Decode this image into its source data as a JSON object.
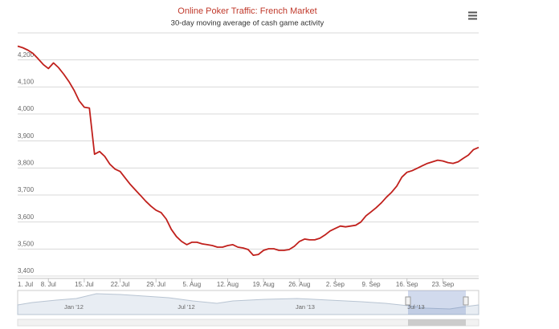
{
  "chart_data": {
    "type": "line",
    "title": "Online Poker Traffic: French Market",
    "subtitle": "30-day moving average of cash game activity",
    "x": [
      "07-02",
      "07-03",
      "07-04",
      "07-05",
      "07-06",
      "07-07",
      "07-08",
      "07-09",
      "07-10",
      "07-11",
      "07-12",
      "07-13",
      "07-14",
      "07-15",
      "07-16",
      "07-17",
      "07-18",
      "07-19",
      "07-20",
      "07-21",
      "07-22",
      "07-23",
      "07-24",
      "07-25",
      "07-26",
      "07-27",
      "07-28",
      "07-29",
      "07-30",
      "07-31",
      "08-01",
      "08-02",
      "08-03",
      "08-04",
      "08-05",
      "08-06",
      "08-07",
      "08-08",
      "08-09",
      "08-10",
      "08-11",
      "08-12",
      "08-13",
      "08-14",
      "08-15",
      "08-16",
      "08-17",
      "08-18",
      "08-19",
      "08-20",
      "08-21",
      "08-22",
      "08-23",
      "08-24",
      "08-25",
      "08-26",
      "08-27",
      "08-28",
      "08-29",
      "08-30",
      "08-31",
      "09-01",
      "09-02",
      "09-03",
      "09-04",
      "09-05",
      "09-06",
      "09-07",
      "09-08",
      "09-09",
      "09-10",
      "09-11",
      "09-12",
      "09-13",
      "09-14",
      "09-15",
      "09-16",
      "09-17",
      "09-18",
      "09-19",
      "09-20",
      "09-21",
      "09-22",
      "09-23",
      "09-24",
      "09-25",
      "09-26",
      "09-27",
      "09-28",
      "09-29",
      "09-30"
    ],
    "series": [
      {
        "color": "#c0201c",
        "values": [
          4251,
          4245,
          4236,
          4224,
          4204,
          4183,
          4168,
          4189,
          4171,
          4147,
          4120,
          4088,
          4049,
          4025,
          4022,
          3851,
          3861,
          3843,
          3814,
          3796,
          3787,
          3763,
          3739,
          3718,
          3698,
          3677,
          3659,
          3644,
          3635,
          3611,
          3573,
          3546,
          3528,
          3516,
          3525,
          3525,
          3519,
          3516,
          3513,
          3507,
          3507,
          3513,
          3516,
          3507,
          3504,
          3498,
          3477,
          3480,
          3495,
          3501,
          3501,
          3495,
          3495,
          3498,
          3510,
          3528,
          3537,
          3534,
          3534,
          3540,
          3552,
          3567,
          3576,
          3585,
          3582,
          3585,
          3588,
          3600,
          3623,
          3638,
          3653,
          3671,
          3692,
          3710,
          3733,
          3766,
          3784,
          3790,
          3799,
          3808,
          3817,
          3823,
          3829,
          3826,
          3820,
          3817,
          3823,
          3836,
          3848,
          3868,
          3876
        ]
      }
    ],
    "xlim": [
      "07-02",
      "09-30"
    ],
    "xticks": [
      {
        "value": "07-01",
        "label": "1. Jul"
      },
      {
        "value": "07-08",
        "label": "8. Jul"
      },
      {
        "value": "07-15",
        "label": "15. Jul"
      },
      {
        "value": "07-22",
        "label": "22. Jul"
      },
      {
        "value": "07-29",
        "label": "29. Jul"
      },
      {
        "value": "08-05",
        "label": "5. Aug"
      },
      {
        "value": "08-12",
        "label": "12. Aug"
      },
      {
        "value": "08-19",
        "label": "19. Aug"
      },
      {
        "value": "08-26",
        "label": "26. Aug"
      },
      {
        "value": "09-02",
        "label": "2. Sep"
      },
      {
        "value": "09-09",
        "label": "9. Sep"
      },
      {
        "value": "09-16",
        "label": "16. Sep"
      },
      {
        "value": "09-23",
        "label": "23. Sep"
      }
    ],
    "ylim": [
      3400,
      4300
    ],
    "yticks": [
      {
        "value": 3400,
        "label": "3,400"
      },
      {
        "value": 3500,
        "label": "3,500"
      },
      {
        "value": 3600,
        "label": "3,600"
      },
      {
        "value": 3700,
        "label": "3,700"
      },
      {
        "value": 3800,
        "label": "3,800"
      },
      {
        "value": 3900,
        "label": "3,900"
      },
      {
        "value": 4000,
        "label": "4,000"
      },
      {
        "value": 4100,
        "label": "4,100"
      },
      {
        "value": 4200,
        "label": "4,200"
      }
    ],
    "grid": true,
    "navigator_labels": [
      "Jan '12",
      "Jul '12",
      "Jan '13",
      "Jul '13"
    ]
  }
}
